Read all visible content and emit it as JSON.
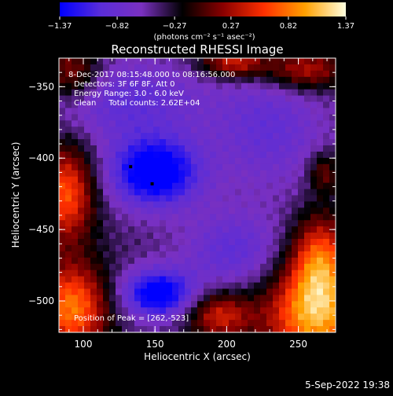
{
  "chart_data": {
    "type": "heatmap",
    "title": "Reconstructed RHESSI Image",
    "xlabel": "Heliocentric X (arcsec)",
    "ylabel": "Heliocentric Y (arcsec)",
    "xlim": [
      83,
      276
    ],
    "ylim": [
      -522,
      -330
    ],
    "x_ticks": [
      100,
      150,
      200,
      250
    ],
    "y_ticks": [
      -350,
      -400,
      -450,
      -500
    ],
    "x_tick_labels": [
      "100",
      "150",
      "200",
      "250"
    ],
    "y_tick_labels": [
      "−350",
      "−400",
      "−450",
      "−500"
    ],
    "colorbar": {
      "min": -1.37,
      "max": 1.37,
      "ticks": [
        -1.37,
        -0.82,
        -0.27,
        0.27,
        0.82,
        1.37
      ],
      "tick_labels": [
        "−1.37",
        "−0.82",
        "−0.27",
        "0.27",
        "0.82",
        "1.37"
      ],
      "unit": "(photons cm⁻² s⁻¹ asec⁻²)",
      "colors": [
        "#0000ff",
        "#5a2dd8",
        "#7a30c0",
        "#000000",
        "#8a0000",
        "#ff3000",
        "#ffa000",
        "#ffffe0"
      ]
    },
    "annotations": [
      "8-Dec-2017 08:15:48.000 to 08:16:56.000",
      "Detectors: 3F 6F 8F, Att 0",
      "Energy Range: 3.0 - 6.0 keV",
      "Clean     Total counts: 2.62E+04"
    ],
    "peak_label": "Position of Peak = [262,-523]",
    "markers": [
      {
        "x": 133,
        "y": -406
      },
      {
        "x": 148,
        "y": -418
      }
    ],
    "blobs": [
      {
        "x": 150,
        "y": -410,
        "sx": 22,
        "sy": 17,
        "a": -1.2
      },
      {
        "x": 152,
        "y": -495,
        "sx": 18,
        "sy": 12,
        "a": -1.1
      },
      {
        "x": 130,
        "y": -360,
        "sx": 40,
        "sy": 20,
        "a": -0.5
      },
      {
        "x": 205,
        "y": -465,
        "sx": 25,
        "sy": 20,
        "a": -0.5
      },
      {
        "x": 230,
        "y": -380,
        "sx": 28,
        "sy": 30,
        "a": -0.45
      },
      {
        "x": 262,
        "y": -510,
        "sx": 25,
        "sy": 25,
        "a": 1.4
      },
      {
        "x": 265,
        "y": -470,
        "sx": 14,
        "sy": 22,
        "a": 1.0
      },
      {
        "x": 88,
        "y": -425,
        "sx": 14,
        "sy": 24,
        "a": 1.1
      },
      {
        "x": 92,
        "y": -505,
        "sx": 18,
        "sy": 22,
        "a": 1.25
      },
      {
        "x": 92,
        "y": -340,
        "sx": 14,
        "sy": 14,
        "a": 0.7
      },
      {
        "x": 205,
        "y": -333,
        "sx": 16,
        "sy": 8,
        "a": 0.9
      },
      {
        "x": 255,
        "y": -338,
        "sx": 20,
        "sy": 10,
        "a": 0.8
      },
      {
        "x": 268,
        "y": -410,
        "sx": 8,
        "sy": 10,
        "a": 0.55
      },
      {
        "x": 195,
        "y": -510,
        "sx": 16,
        "sy": 12,
        "a": 0.85
      }
    ]
  },
  "footer": {
    "date_stamp": "5-Sep-2022 19:38"
  }
}
